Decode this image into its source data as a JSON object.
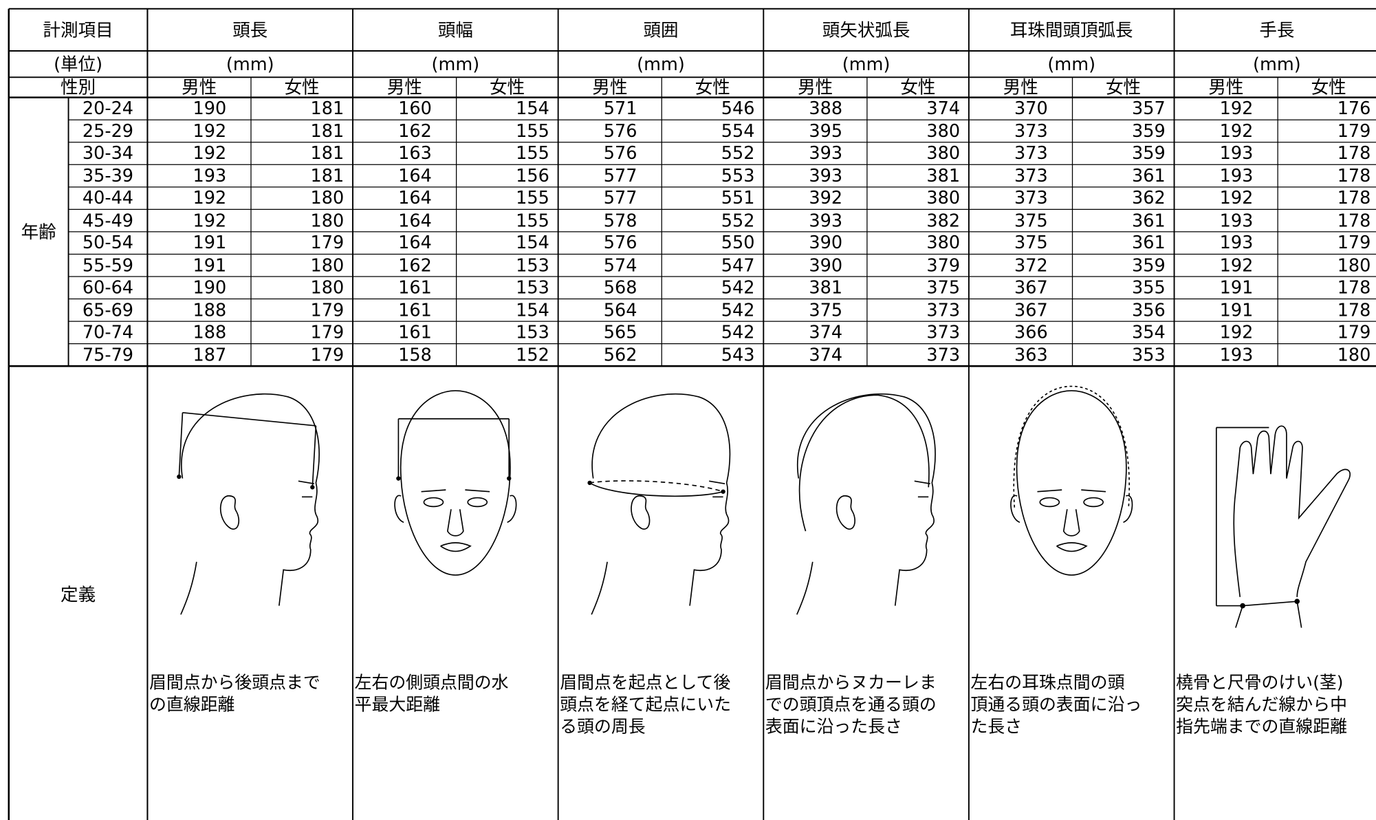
{
  "header": {
    "item_label": "計測項目",
    "unit_label": "(単位)",
    "sex_label": "性別",
    "age_label": "年齢",
    "definition_label": "定義"
  },
  "items": [
    {
      "name": "頭長",
      "unit": "(mm)",
      "male": "男性",
      "female": "女性",
      "definition": [
        "眉間点から後頭点まで",
        "の直線距離"
      ]
    },
    {
      "name": "頭幅",
      "unit": "(mm)",
      "male": "男性",
      "female": "女性",
      "definition": [
        "左右の側頭点間の水",
        "平最大距離"
      ]
    },
    {
      "name": "頭囲",
      "unit": "(mm)",
      "male": "男性",
      "female": "女性",
      "definition": [
        "眉間点を起点として後",
        "頭点を経て起点にいた",
        "る頭の周長"
      ]
    },
    {
      "name": "頭矢状弧長",
      "unit": "(mm)",
      "male": "男性",
      "female": "女性",
      "definition": [
        "眉間点からヌカーレま",
        "での頭頂点を通る頭の",
        "表面に沿った長さ"
      ]
    },
    {
      "name": "耳珠間頭頂弧長",
      "unit": "(mm)",
      "male": "男性",
      "female": "女性",
      "definition": [
        "左右の耳珠点間の頭",
        "頂通る頭の表面に沿っ",
        "た長さ"
      ]
    },
    {
      "name": "手長",
      "unit": "(mm)",
      "male": "男性",
      "female": "女性",
      "definition": [
        "橈骨と尺骨のけい(茎)",
        "突点を結んだ線から中",
        "指先端までの直線距離"
      ]
    }
  ],
  "rows": [
    {
      "age": "20-24",
      "values": [
        190,
        181,
        160,
        154,
        571,
        546,
        388,
        374,
        370,
        357,
        192,
        176
      ]
    },
    {
      "age": "25-29",
      "values": [
        192,
        181,
        162,
        155,
        576,
        554,
        395,
        380,
        373,
        359,
        192,
        179
      ]
    },
    {
      "age": "30-34",
      "values": [
        192,
        181,
        163,
        155,
        576,
        552,
        393,
        380,
        373,
        359,
        193,
        178
      ]
    },
    {
      "age": "35-39",
      "values": [
        193,
        181,
        164,
        156,
        577,
        553,
        393,
        381,
        373,
        361,
        193,
        178
      ]
    },
    {
      "age": "40-44",
      "values": [
        192,
        180,
        164,
        155,
        577,
        551,
        392,
        380,
        373,
        362,
        192,
        178
      ]
    },
    {
      "age": "45-49",
      "values": [
        192,
        180,
        164,
        155,
        578,
        552,
        393,
        382,
        375,
        361,
        193,
        178
      ]
    },
    {
      "age": "50-54",
      "values": [
        191,
        179,
        164,
        154,
        576,
        550,
        390,
        380,
        375,
        361,
        193,
        179
      ]
    },
    {
      "age": "55-59",
      "values": [
        191,
        180,
        162,
        153,
        574,
        547,
        390,
        379,
        372,
        359,
        192,
        180
      ]
    },
    {
      "age": "60-64",
      "values": [
        190,
        180,
        161,
        153,
        568,
        542,
        381,
        375,
        367,
        355,
        191,
        178
      ]
    },
    {
      "age": "65-69",
      "values": [
        188,
        179,
        161,
        154,
        564,
        542,
        375,
        373,
        367,
        356,
        191,
        178
      ]
    },
    {
      "age": "70-74",
      "values": [
        188,
        179,
        161,
        153,
        565,
        542,
        374,
        373,
        366,
        354,
        192,
        179
      ]
    },
    {
      "age": "75-79",
      "values": [
        187,
        179,
        158,
        152,
        562,
        543,
        374,
        373,
        363,
        353,
        193,
        180
      ]
    }
  ]
}
